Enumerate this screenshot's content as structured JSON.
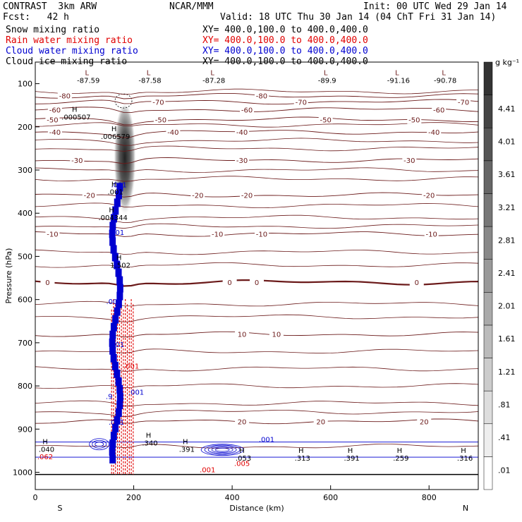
{
  "header": {
    "model": "CONTRAST  3km ARW",
    "org": "NCAR/MMM",
    "init": "Init: 00 UTC Wed 29 Jan 14",
    "fcst": "Fcst:   42 h",
    "valid": "Valid: 18 UTC Thu 30 Jan 14 (04 ChT Fri 31 Jan 14)"
  },
  "fields": [
    {
      "name": "Snow mixing ratio",
      "xy": "XY= 400.0,100.0 to 400.0,400.0",
      "color": "#000000"
    },
    {
      "name": "Rain water mixing ratio",
      "xy": "XY= 400.0,100.0 to 400.0,400.0",
      "color": "#e00000"
    },
    {
      "name": "Cloud water mixing ratio",
      "xy": "XY= 400.0,100.0 to 400.0,400.0",
      "color": "#0000d0"
    },
    {
      "name": "Cloud ice mixing ratio",
      "xy": "XY= 400.0,100.0 to 400.0,400.0",
      "color": "#000000"
    }
  ],
  "chart_data": {
    "type": "heatmap",
    "xlabel": "Distance (km)",
    "ylabel": "Pressure (hPa)",
    "xlim": [
      0,
      900
    ],
    "ylim": [
      1040,
      50
    ],
    "x_ticks": [
      0,
      200,
      400,
      600,
      800
    ],
    "y_ticks": [
      100,
      200,
      300,
      400,
      500,
      600,
      700,
      800,
      900,
      1000
    ],
    "x_end_labels": {
      "left": "S",
      "right": "N"
    },
    "colorbar": {
      "unit": "g kg⁻¹",
      "levels": [
        ".01",
        ".41",
        ".81",
        "1.21",
        "1.61",
        "2.01",
        "2.41",
        "2.81",
        "3.21",
        "3.61",
        "4.01",
        "4.41"
      ],
      "color_low": "#ffffff",
      "color_high": "#333333"
    },
    "temperature_contours": [
      {
        "value": -80,
        "p": 128,
        "labels": [
          {
            "x": 60,
            "text": "-80"
          },
          {
            "x": 460,
            "text": "-80"
          }
        ]
      },
      {
        "value": -70,
        "p": 142,
        "labels": [
          {
            "x": 250,
            "text": "-70"
          },
          {
            "x": 540,
            "text": "-70"
          },
          {
            "x": 870,
            "text": "-70"
          }
        ]
      },
      {
        "value": -60,
        "p": 160,
        "labels": [
          {
            "x": 40,
            "text": "-60"
          },
          {
            "x": 430,
            "text": "-60"
          },
          {
            "x": 820,
            "text": "-60"
          }
        ]
      },
      {
        "value": -50,
        "p": 183,
        "labels": [
          {
            "x": 35,
            "text": "-50"
          },
          {
            "x": 255,
            "text": "-50"
          },
          {
            "x": 590,
            "text": "-50"
          },
          {
            "x": 770,
            "text": "-50"
          }
        ]
      },
      {
        "value": -40,
        "p": 212,
        "labels": [
          {
            "x": 40,
            "text": "-40"
          },
          {
            "x": 280,
            "text": "-40"
          },
          {
            "x": 420,
            "text": "-40"
          },
          {
            "x": 810,
            "text": "-40"
          }
        ]
      },
      {
        "value": -30,
        "p": 277,
        "labels": [
          {
            "x": 85,
            "text": "-30"
          },
          {
            "x": 420,
            "text": "-30"
          },
          {
            "x": 760,
            "text": "-30"
          }
        ]
      },
      {
        "value": -20,
        "p": 358,
        "labels": [
          {
            "x": 110,
            "text": "-20"
          },
          {
            "x": 330,
            "text": "-20"
          },
          {
            "x": 430,
            "text": "-20"
          },
          {
            "x": 800,
            "text": "-20"
          }
        ]
      },
      {
        "value": -10,
        "p": 448,
        "labels": [
          {
            "x": 35,
            "text": "-10"
          },
          {
            "x": 370,
            "text": "-10"
          },
          {
            "x": 460,
            "text": "-10"
          },
          {
            "x": 805,
            "text": "-10"
          }
        ]
      },
      {
        "value": 0,
        "p": 560,
        "labels": [
          {
            "x": 25,
            "text": "0"
          },
          {
            "x": 395,
            "text": "0"
          },
          {
            "x": 450,
            "text": "0"
          },
          {
            "x": 775,
            "text": "0"
          }
        ]
      },
      {
        "value": 10,
        "p": 680,
        "labels": [
          {
            "x": 420,
            "text": "10"
          },
          {
            "x": 490,
            "text": "10"
          }
        ]
      },
      {
        "value": 20,
        "p": 882,
        "labels": [
          {
            "x": 420,
            "text": "20"
          },
          {
            "x": 580,
            "text": "20"
          },
          {
            "x": 790,
            "text": "20"
          }
        ]
      }
    ],
    "extra_isotherms_p": [
      118,
      195,
      232,
      250,
      300,
      320,
      382,
      410,
      430,
      490,
      520,
      610,
      640,
      720,
      760,
      800,
      840,
      860,
      940
    ],
    "hl_labels": [
      {
        "type": "L",
        "x": 105,
        "p": 80,
        "value": "-87.59"
      },
      {
        "type": "L",
        "x": 230,
        "p": 80,
        "value": "-87.58"
      },
      {
        "type": "L",
        "x": 360,
        "p": 80,
        "value": "-87.28"
      },
      {
        "type": "L",
        "x": 590,
        "p": 80,
        "value": "-89.9"
      },
      {
        "type": "L",
        "x": 735,
        "p": 80,
        "value": "-91.16"
      },
      {
        "type": "L",
        "x": 830,
        "p": 80,
        "value": "-90.78"
      },
      {
        "type": "H",
        "x": 80,
        "p": 165,
        "value": ".000507"
      },
      {
        "type": "H",
        "x": 160,
        "p": 210,
        "value": ".006579"
      },
      {
        "type": "H",
        "x": 160,
        "p": 338,
        "value": ".001"
      },
      {
        "type": "H",
        "x": 155,
        "p": 398,
        "value": ".004344"
      },
      {
        "type": "H",
        "x": 170,
        "p": 508,
        "value": "1.502"
      },
      {
        "type": "H",
        "x": 20,
        "p": 935,
        "value": ".040"
      },
      {
        "type": "H",
        "x": 230,
        "p": 920,
        "value": ".340"
      },
      {
        "type": "H",
        "x": 305,
        "p": 935,
        "value": ".391"
      },
      {
        "type": "H",
        "x": 420,
        "p": 955,
        "value": ".053"
      },
      {
        "type": "H",
        "x": 540,
        "p": 955,
        "value": ".313"
      },
      {
        "type": "H",
        "x": 640,
        "p": 955,
        "value": ".391"
      },
      {
        "type": "H",
        "x": 740,
        "p": 955,
        "value": ".259"
      },
      {
        "type": "H",
        "x": 870,
        "p": 955,
        "value": ".316"
      }
    ],
    "annotations": [
      {
        "x": 170,
        "p": 340,
        "text": ".001",
        "color": "#0000d0"
      },
      {
        "x": 165,
        "p": 450,
        "text": ".001",
        "color": "#0000d0"
      },
      {
        "x": 160,
        "p": 610,
        "text": ".001",
        "color": "#0000d0"
      },
      {
        "x": 165,
        "p": 710,
        "text": ".001",
        "color": "#0000d0"
      },
      {
        "x": 195,
        "p": 760,
        "text": ".001",
        "color": "#e00000"
      },
      {
        "x": 205,
        "p": 820,
        "text": ".001",
        "color": "#0000d0"
      },
      {
        "x": 165,
        "p": 890,
        "text": ".001",
        "color": "#0000d0"
      },
      {
        "x": 470,
        "p": 930,
        "text": ".001",
        "color": "#0000d0"
      },
      {
        "x": 350,
        "p": 1000,
        "text": ".001",
        "color": "#e00000"
      },
      {
        "x": 420,
        "p": 985,
        "text": ".005",
        "color": "#e00000"
      },
      {
        "x": 20,
        "p": 970,
        "text": ".062",
        "color": "#e00000"
      },
      {
        "x": 150,
        "p": 830,
        "text": ".9",
        "color": "#0000d0"
      }
    ],
    "snow_plume": {
      "x_center": 182,
      "p_top": 150,
      "p_bottom": 420,
      "max": 4.6
    },
    "rain_column": {
      "x_left": 155,
      "x_right": 200,
      "p_top": 590,
      "p_bottom": 1005
    },
    "cloud_water_column": {
      "x_left": 150,
      "x_right": 190,
      "p_top": 330,
      "p_bottom": 960
    },
    "cloud_water_low_band": {
      "x_left": 0,
      "x_right": 900,
      "p_top": 930,
      "p_bottom": 965
    }
  }
}
